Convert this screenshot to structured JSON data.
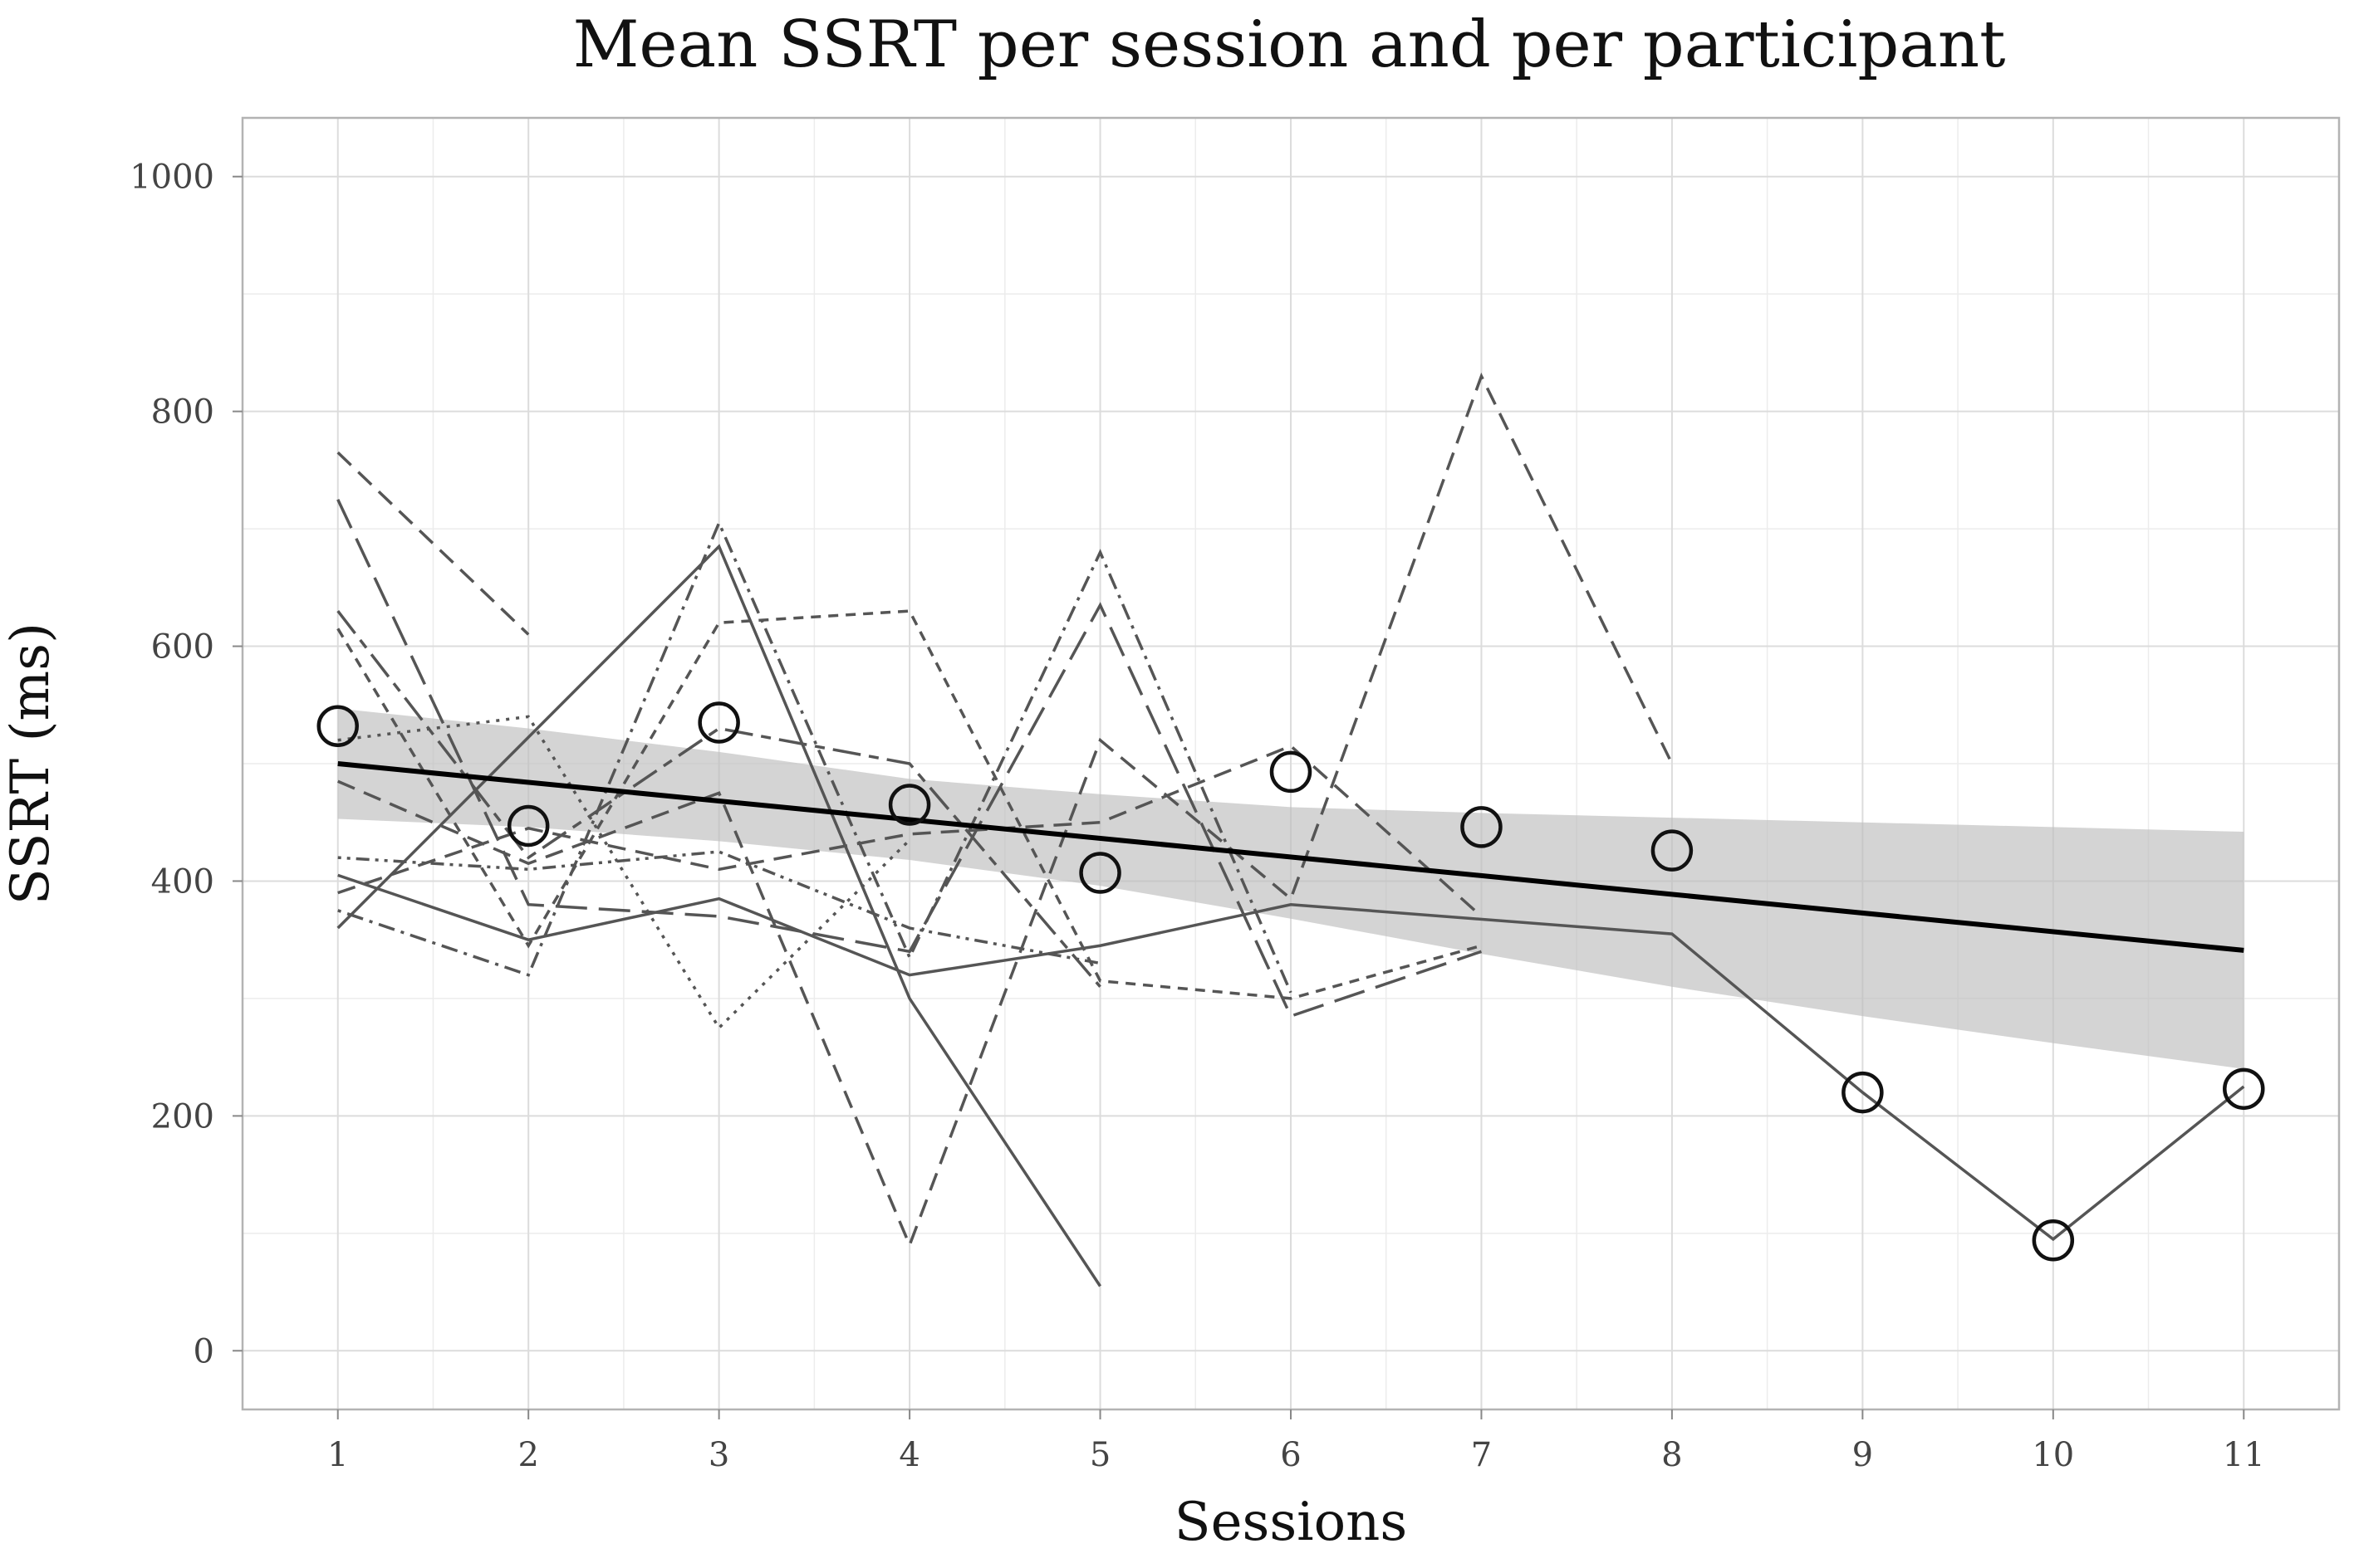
{
  "chart_data": {
    "type": "line",
    "title": "Mean SSRT per session and per participant",
    "xlabel": "Sessions",
    "ylabel": "SSRT (ms)",
    "xlim": [
      0.5,
      11.5
    ],
    "ylim": [
      -50,
      1050
    ],
    "x_ticks": [
      1,
      2,
      3,
      4,
      5,
      6,
      7,
      8,
      9,
      10,
      11
    ],
    "x_tick_labels": [
      "1",
      "2",
      "3",
      "4",
      "5",
      "6",
      "7",
      "8",
      "9",
      "10",
      "11"
    ],
    "y_ticks": [
      0,
      200,
      400,
      600,
      800,
      1000
    ],
    "y_tick_labels": [
      "0",
      "200",
      "400",
      "600",
      "800",
      "1000"
    ],
    "grid": true,
    "series": [
      {
        "style": "dashed",
        "x": [
          1,
          2
        ],
        "y": [
          765,
          610
        ]
      },
      {
        "style": "dashed",
        "x": [
          1,
          2,
          3,
          4,
          5,
          6,
          7,
          8
        ],
        "y": [
          485,
          415,
          475,
          90,
          520,
          385,
          830,
          500
        ]
      },
      {
        "style": "short-dash",
        "x": [
          1,
          2,
          3,
          4,
          5,
          6,
          7
        ],
        "y": [
          615,
          345,
          620,
          630,
          315,
          300,
          345
        ]
      },
      {
        "style": "solid",
        "x": [
          1,
          2,
          3,
          4,
          5,
          6,
          8,
          9,
          10,
          11
        ],
        "y": [
          405,
          350,
          385,
          320,
          345,
          380,
          355,
          220,
          95,
          225
        ]
      },
      {
        "style": "long-dash",
        "x": [
          1,
          2,
          3,
          4,
          5,
          6,
          7
        ],
        "y": [
          725,
          380,
          370,
          340,
          635,
          285,
          340
        ]
      },
      {
        "style": "solid",
        "x": [
          1,
          3,
          4,
          5
        ],
        "y": [
          360,
          685,
          300,
          55
        ]
      },
      {
        "style": "dot-dash",
        "x": [
          1,
          2,
          3,
          4,
          5,
          6
        ],
        "y": [
          375,
          320,
          705,
          335,
          680,
          305
        ]
      },
      {
        "style": "dotted",
        "x": [
          1,
          2,
          3,
          4
        ],
        "y": [
          520,
          540,
          275,
          435
        ]
      },
      {
        "style": "long-short-dash",
        "x": [
          1,
          2,
          3,
          4,
          5
        ],
        "y": [
          630,
          420,
          530,
          500,
          310
        ]
      },
      {
        "style": "dashed",
        "x": [
          1,
          2,
          3,
          4,
          5,
          6,
          7
        ],
        "y": [
          390,
          445,
          410,
          440,
          450,
          515,
          370
        ]
      },
      {
        "style": "dotted-dash",
        "x": [
          1,
          2,
          3,
          4,
          5
        ],
        "y": [
          420,
          410,
          425,
          360,
          330
        ]
      }
    ],
    "session_means": {
      "x": [
        1,
        2,
        3,
        4,
        5,
        6,
        7,
        8,
        9,
        10,
        11
      ],
      "y": [
        532,
        447,
        535,
        465,
        407,
        493,
        446,
        426,
        220,
        94,
        223
      ]
    },
    "trend": {
      "x": [
        1,
        11
      ],
      "y": [
        500,
        341
      ]
    },
    "confidence_band": {
      "x": [
        1,
        2,
        3,
        4,
        5,
        6,
        7,
        8,
        9,
        10,
        11
      ],
      "lower": [
        453,
        446,
        434,
        418,
        396,
        368,
        338,
        310,
        285,
        262,
        240
      ],
      "upper": [
        547,
        530,
        510,
        487,
        474,
        463,
        458,
        454,
        450,
        446,
        442
      ]
    }
  }
}
